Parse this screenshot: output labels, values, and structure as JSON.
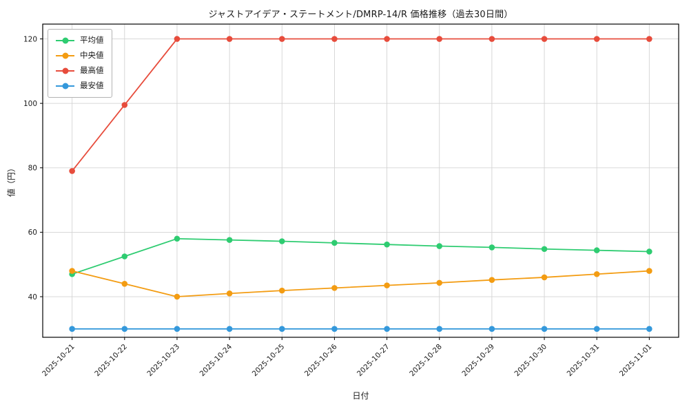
{
  "figure": {
    "background": "#ffffff"
  },
  "chart_data": {
    "type": "line",
    "title": "ジャストアイデア・ステートメント/DMRP-14/R 価格推移（過去30日間）",
    "xlabel": "日付",
    "ylabel": "値（円）",
    "categories": [
      "2025-10-21",
      "2025-10-22",
      "2025-10-23",
      "2025-10-24",
      "2025-10-25",
      "2025-10-26",
      "2025-10-27",
      "2025-10-28",
      "2025-10-29",
      "2025-10-30",
      "2025-10-31",
      "2025-11-01"
    ],
    "series": [
      {
        "name": "平均値",
        "color": "#2ecc71",
        "values": [
          47,
          52.5,
          58,
          57.6,
          57.2,
          56.7,
          56.2,
          55.7,
          55.3,
          54.8,
          54.4,
          54
        ]
      },
      {
        "name": "中央値",
        "color": "#f39c12",
        "values": [
          48,
          44,
          40,
          41,
          41.9,
          42.7,
          43.5,
          44.3,
          45.2,
          46,
          47,
          48
        ]
      },
      {
        "name": "最高値",
        "color": "#e74c3c",
        "values": [
          79,
          99.5,
          120,
          120,
          120,
          120,
          120,
          120,
          120,
          120,
          120,
          120
        ]
      },
      {
        "name": "最安値",
        "color": "#3498db",
        "values": [
          30,
          30,
          30,
          30,
          30,
          30,
          30,
          30,
          30,
          30,
          30,
          30
        ]
      }
    ],
    "ylim": [
      27.4,
      124.6
    ],
    "yticks": [
      40,
      60,
      80,
      100,
      120
    ],
    "grid": true,
    "legend_position": "upper left",
    "grid_color": "#d3d3d3",
    "frame_color": "#000000"
  }
}
